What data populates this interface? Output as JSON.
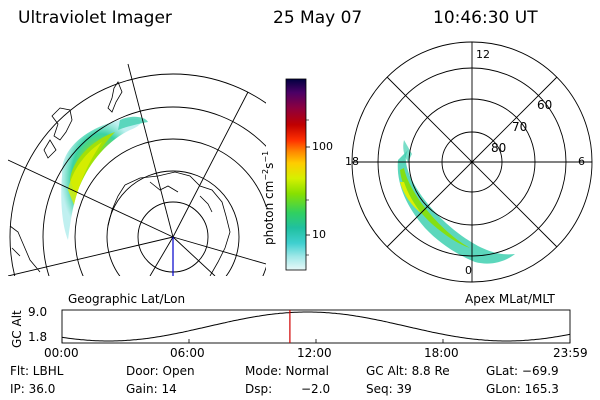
{
  "header": {
    "instrument": "Ultraviolet Imager",
    "date": "25 May 07",
    "time": "10:46:30 UT"
  },
  "left_panel": {
    "caption": "Geographic Lat/Lon"
  },
  "right_panel": {
    "caption": "Apex MLat/MLT",
    "mlt_labels": {
      "top": "12",
      "left": "18",
      "right": "6",
      "bottom": "0"
    },
    "mlat_labels": [
      "60",
      "70",
      "80"
    ]
  },
  "colorbar": {
    "unit_prefix": "photon cm",
    "unit_exp1": "−2",
    "unit_mid": "s",
    "unit_exp2": "−1",
    "ticks": [
      "100",
      "10"
    ],
    "scale": "log",
    "colors": [
      "#000040",
      "#4a0066",
      "#8b0040",
      "#c00000",
      "#ff3000",
      "#ff8800",
      "#ffcc00",
      "#d6f000",
      "#88e000",
      "#30d060",
      "#20c0a0",
      "#40d0d0",
      "#a0e8e8",
      "#d8f4f4"
    ]
  },
  "altitude_plot": {
    "ylabel": "GC Alt",
    "y_ticks": [
      "9.0",
      "1.8"
    ],
    "x_ticks": [
      "00:00",
      "06:00",
      "12:00",
      "18:00",
      "23:59"
    ],
    "marker_color": "#d00000"
  },
  "footer": {
    "row1": {
      "flt": "Flt: LBHL",
      "door": "Door: Open",
      "mode": "Mode: Normal",
      "gcalt": "GC Alt: 8.8 Re",
      "glat": "GLat: −69.9"
    },
    "row2": {
      "ip": "IP: 36.0",
      "gain": "Gain: 14",
      "dsp_label": "Dsp:",
      "dsp_value": "−2.0",
      "seq": "Seq: 39",
      "glon": "GLon: 165.3"
    }
  },
  "chart_data": [
    {
      "type": "heatmap",
      "title": "Geographic Lat/Lon",
      "projection": "polar, geographic",
      "description_values": {
        "aurora": "oval arc of UV emission"
      }
    },
    {
      "type": "heatmap",
      "title": "Apex MLat/MLT",
      "projection": "polar, magnetic",
      "mlat_circles": [
        60,
        70,
        80
      ],
      "mlt_labels": [
        12,
        18,
        6,
        0
      ]
    },
    {
      "type": "line",
      "ylabel": "GC Alt",
      "y_ticks": [
        9.0,
        1.8
      ],
      "x_ticks": [
        "00:00",
        "06:00",
        "12:00",
        "18:00",
        "23:59"
      ],
      "current_time": "10:46",
      "ylim": [
        1.8,
        9.0
      ]
    }
  ]
}
